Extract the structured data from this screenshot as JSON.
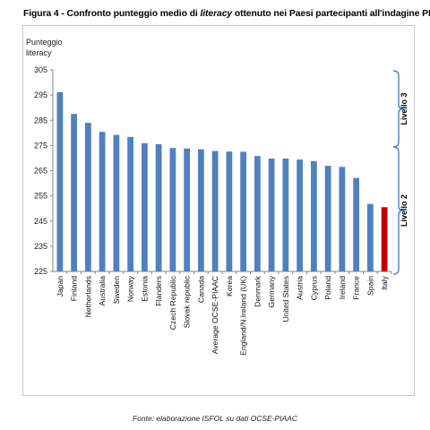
{
  "figure": {
    "title_prefix": "Figura 4 - Confronto punteggio medio di ",
    "title_italic": "literacy",
    "title_suffix": " ottenuto nei Paesi partecipanti all'indagine PIAAC",
    "source": "Fonte: elaborazione ISFOL su dati OCSE-PIAAC"
  },
  "colors": {
    "bar": "#4f81bd",
    "highlight_bar": "#c00000",
    "bracket": "#4f81bd",
    "axis": "#868686"
  },
  "chart_data": {
    "type": "bar",
    "ylabel_lines": [
      "Punteggio",
      "literacy"
    ],
    "ylim": [
      225,
      305
    ],
    "yticks": [
      225,
      235,
      245,
      255,
      265,
      275,
      285,
      295,
      305
    ],
    "grid": false,
    "categories": [
      "Japan",
      "Finland",
      "Netherlands",
      "Australia",
      "Sweden",
      "Norway",
      "Estonia",
      "Flanders",
      "Czech Republic",
      "Slovak republic",
      "Canada",
      "Average OCSE-PIAAC",
      "Korea",
      "England/N.Ireland (UK)",
      "Denmark",
      "Germany",
      "United States",
      "Austria",
      "Cyprus",
      "Poland",
      "Ireland",
      "France",
      "Spain",
      "Italy"
    ],
    "values": [
      296.2,
      287.5,
      284.0,
      280.4,
      279.2,
      278.4,
      275.9,
      275.5,
      274.0,
      273.8,
      273.5,
      272.8,
      272.6,
      272.5,
      270.8,
      269.8,
      269.8,
      269.4,
      268.8,
      266.9,
      266.5,
      262.1,
      251.8,
      250.5
    ],
    "highlight": "Italy",
    "bands": [
      {
        "label": "Livello 3",
        "from": 276,
        "to": 305
      },
      {
        "label": "Livello 2",
        "from": 225,
        "to": 276
      }
    ]
  }
}
